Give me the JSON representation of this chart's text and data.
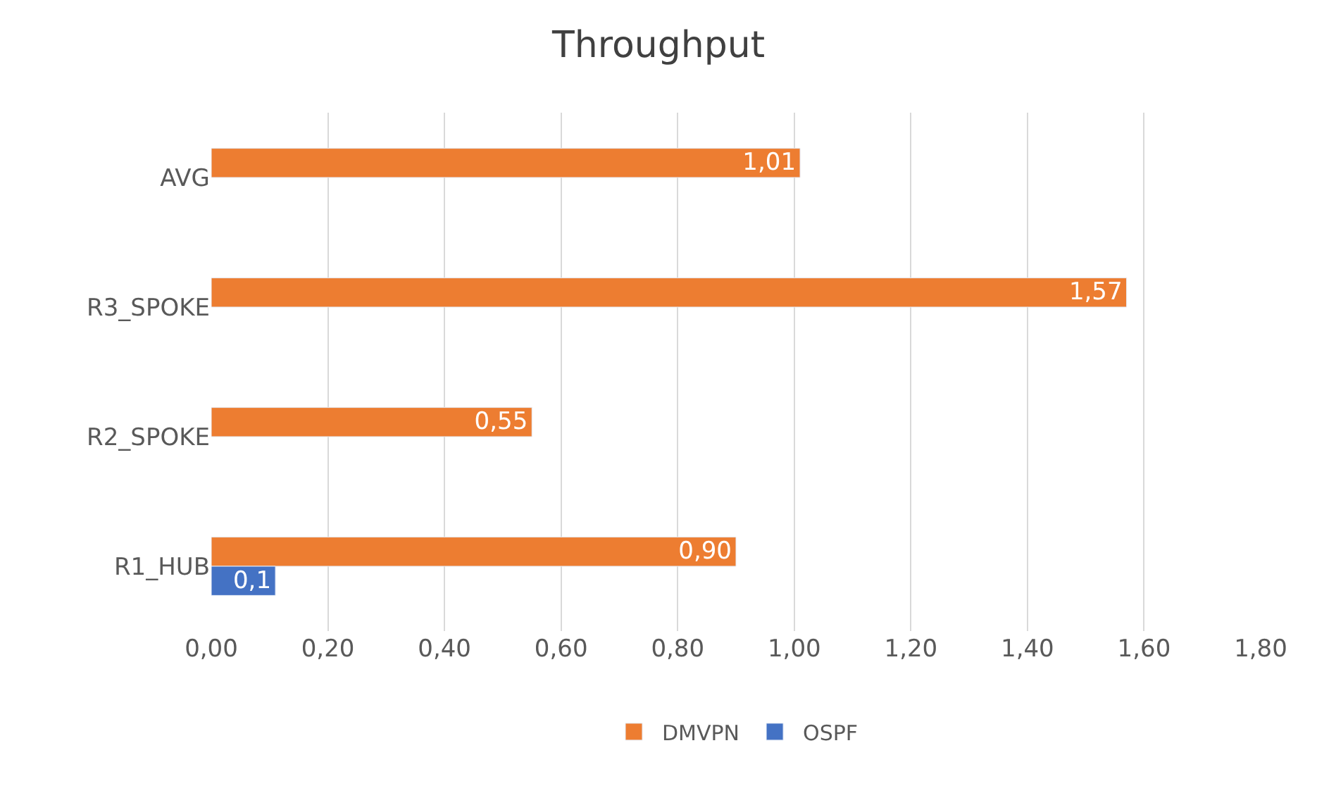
{
  "chart_data": {
    "type": "bar",
    "title": "Throughput",
    "orientation": "horizontal",
    "categories": [
      "AVG",
      "R3_SPOKE",
      "R2_SPOKE",
      "R1_HUB"
    ],
    "series": [
      {
        "name": "DMVPN",
        "color": "#ed7d31",
        "values": [
          1.01,
          1.57,
          0.55,
          0.9
        ],
        "value_labels": [
          "1,01",
          "1,57",
          "0,55",
          "0,90"
        ]
      },
      {
        "name": "OSPF",
        "color": "#4472c4",
        "values": [
          null,
          null,
          null,
          0.11
        ],
        "value_labels": [
          null,
          null,
          null,
          "0,1"
        ]
      }
    ],
    "xlim": [
      0,
      1.8
    ],
    "xticks": [
      {
        "value": 0,
        "label": "0,00"
      },
      {
        "value": 0.2,
        "label": "0,20"
      },
      {
        "value": 0.4,
        "label": "0,40"
      },
      {
        "value": 0.6,
        "label": "0,60"
      },
      {
        "value": 0.8,
        "label": "0,80"
      },
      {
        "value": 1.0,
        "label": "1,00"
      },
      {
        "value": 1.2,
        "label": "1,20"
      },
      {
        "value": 1.4,
        "label": "1,40"
      },
      {
        "value": 1.6,
        "label": "1,60"
      },
      {
        "value": 1.8,
        "label": "1,80"
      }
    ],
    "grid": "x",
    "legend": "bottom"
  }
}
